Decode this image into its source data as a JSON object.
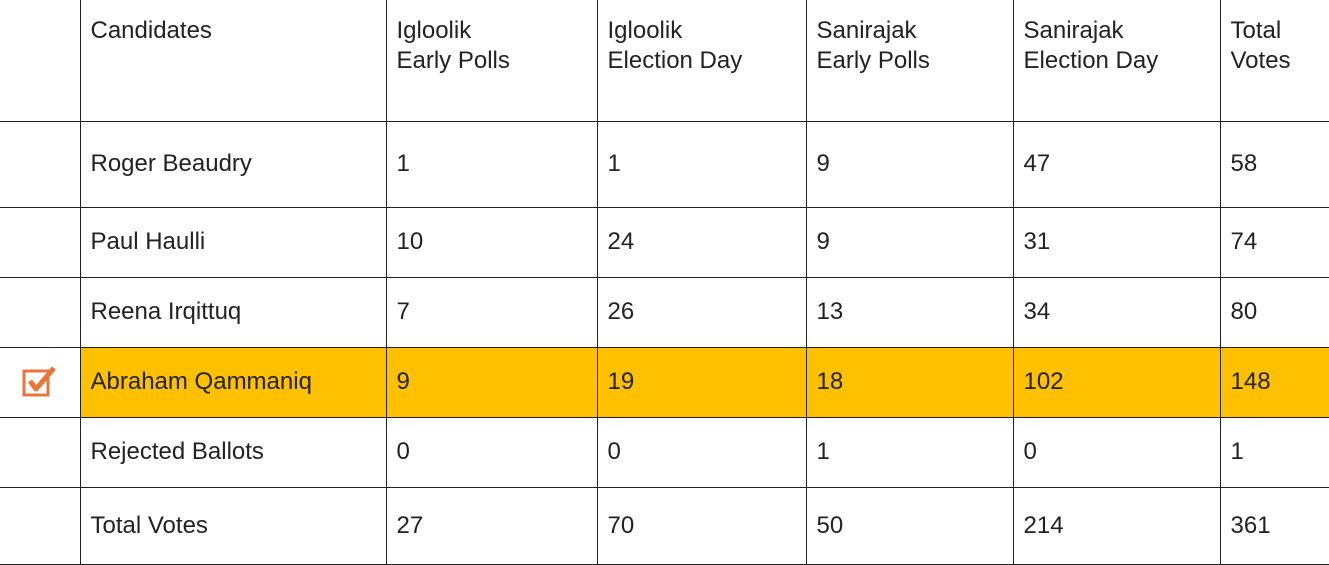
{
  "table": {
    "header": [
      [
        "Candidates"
      ],
      [
        "Igloolik",
        "Early Polls"
      ],
      [
        "Igloolik",
        "Election Day"
      ],
      [
        "Sanirajak",
        "Early Polls"
      ],
      [
        "Sanirajak",
        "Election Day"
      ],
      [
        "Total",
        "Votes"
      ]
    ],
    "rows": [
      [
        "Roger Beaudry",
        1,
        1,
        9,
        47,
        58
      ],
      [
        "Paul Haulli",
        10,
        24,
        9,
        31,
        74
      ],
      [
        "Reena Irqittuq",
        7,
        26,
        13,
        34,
        80
      ],
      [
        "Abraham Qammaniq",
        9,
        19,
        18,
        102,
        148
      ],
      [
        "Rejected Ballots",
        0,
        0,
        1,
        0,
        1
      ],
      [
        "Total Votes",
        27,
        70,
        50,
        214,
        361
      ]
    ]
  }
}
